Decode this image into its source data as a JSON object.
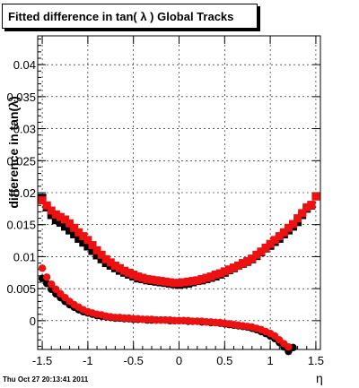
{
  "title": "Fitted difference in tan( λ )  Global Tracks",
  "datestamp": "Thu Oct 27 20:13:41 2011",
  "chart_data": {
    "type": "scatter",
    "xlabel": "η",
    "ylabel": "difference in tan(λ)",
    "xlim": [
      -1.55,
      1.55
    ],
    "ylim": [
      -0.0045,
      0.0445
    ],
    "x_ticks": [
      -1.5,
      -1,
      -0.5,
      0,
      0.5,
      1,
      1.5
    ],
    "x_tick_labels": [
      "-1.5",
      "-1",
      "-0.5",
      "0",
      "0.5",
      "1",
      "1.5"
    ],
    "y_ticks": [
      0,
      0.005,
      0.01,
      0.015,
      0.02,
      0.025,
      0.03,
      0.035,
      0.04
    ],
    "y_tick_labels": [
      "0",
      "0.005",
      "0.01",
      "0.015",
      "0.02",
      "0.025",
      "0.03",
      "0.035",
      "0.04"
    ],
    "grid": true,
    "series": [
      {
        "color": "#000000",
        "marker": "circle",
        "x": [
          -1.5,
          -1.45,
          -1.4,
          -1.35,
          -1.3,
          -1.25,
          -1.2,
          -1.15,
          -1.1,
          -1.05,
          -1.0,
          -0.95,
          -0.9,
          -0.85,
          -0.8,
          -0.75,
          -0.7,
          -0.65,
          -0.6,
          -0.55,
          -0.5,
          -0.45,
          -0.4,
          -0.35,
          -0.3,
          -0.25,
          -0.2,
          -0.15,
          -0.1,
          -0.05,
          0.0,
          0.05,
          0.1,
          0.15,
          0.2,
          0.25,
          0.3,
          0.35,
          0.4,
          0.45,
          0.5,
          0.55,
          0.6,
          0.65,
          0.7,
          0.75,
          0.8,
          0.85,
          0.9,
          0.95,
          1.0,
          1.05,
          1.1,
          1.15,
          1.2,
          1.25
        ],
        "y": [
          0.0066,
          0.0058,
          0.0049,
          0.0042,
          0.0036,
          0.003,
          0.0025,
          0.0021,
          0.0017,
          0.0014,
          0.0012,
          0.001,
          0.0008,
          0.0007,
          0.0006,
          0.0005,
          0.0004,
          0.0004,
          0.0003,
          0.0003,
          0.0002,
          0.0002,
          0.0002,
          0.0001,
          0.0001,
          0.0001,
          0.0001,
          0.0001,
          0.0,
          0.0,
          0.0,
          0.0,
          -0.0001,
          -0.0001,
          -0.0001,
          -0.0002,
          -0.0002,
          -0.0003,
          -0.0003,
          -0.0004,
          -0.0005,
          -0.0006,
          -0.0007,
          -0.0008,
          -0.0009,
          -0.001,
          -0.0012,
          -0.0014,
          -0.0017,
          -0.002,
          -0.0024,
          -0.0028,
          -0.0034,
          -0.0041,
          -0.0048,
          -0.0042
        ]
      },
      {
        "color": "#000000",
        "marker": "square",
        "x": [
          -1.5,
          -1.45,
          -1.4,
          -1.35,
          -1.3,
          -1.25,
          -1.2,
          -1.15,
          -1.1,
          -1.05,
          -1.0,
          -0.95,
          -0.9,
          -0.85,
          -0.8,
          -0.75,
          -0.7,
          -0.65,
          -0.6,
          -0.55,
          -0.5,
          -0.45,
          -0.4,
          -0.35,
          -0.3,
          -0.25,
          -0.2,
          -0.15,
          -0.1,
          -0.05,
          0.0,
          0.05,
          0.1,
          0.15,
          0.2,
          0.25,
          0.3,
          0.35,
          0.4,
          0.45,
          0.5,
          0.55,
          0.6,
          0.65,
          0.7,
          0.75,
          0.8,
          0.85,
          0.9,
          0.95,
          1.0,
          1.05,
          1.1,
          1.15,
          1.2,
          1.25,
          1.3,
          1.35,
          1.4,
          1.45
        ],
        "y": [
          0.0192,
          0.0177,
          0.0165,
          0.0157,
          0.0153,
          0.0147,
          0.0141,
          0.0135,
          0.0128,
          0.0122,
          0.0116,
          0.0109,
          0.0102,
          0.0096,
          0.009,
          0.0086,
          0.0082,
          0.0078,
          0.0075,
          0.0072,
          0.0069,
          0.0066,
          0.0065,
          0.0063,
          0.0062,
          0.0061,
          0.006,
          0.0059,
          0.0058,
          0.0057,
          0.0056,
          0.0057,
          0.0058,
          0.006,
          0.0062,
          0.0063,
          0.0065,
          0.0067,
          0.0069,
          0.0072,
          0.0075,
          0.0079,
          0.0082,
          0.0086,
          0.0089,
          0.0092,
          0.0096,
          0.0101,
          0.0107,
          0.0113,
          0.0117,
          0.0123,
          0.0128,
          0.0135,
          0.0141,
          0.0147,
          0.0154,
          0.0165,
          0.0175,
          0.018
        ]
      },
      {
        "color": "#ee1111",
        "marker": "circle",
        "x": [
          -1.5,
          -1.45,
          -1.4,
          -1.35,
          -1.3,
          -1.25,
          -1.2,
          -1.15,
          -1.1,
          -1.05,
          -1.0,
          -0.95,
          -0.9,
          -0.85,
          -0.8,
          -0.75,
          -0.7,
          -0.65,
          -0.6,
          -0.55,
          -0.5,
          -0.45,
          -0.4,
          -0.35,
          -0.3,
          -0.25,
          -0.2,
          -0.15,
          -0.1,
          -0.05,
          0.0,
          0.05,
          0.1,
          0.15,
          0.2,
          0.25,
          0.3,
          0.35,
          0.4,
          0.45,
          0.5,
          0.55,
          0.6,
          0.65,
          0.7,
          0.75,
          0.8,
          0.85,
          0.9,
          0.95,
          1.0,
          1.05,
          1.1,
          1.15,
          1.2
        ],
        "y": [
          0.0082,
          0.0068,
          0.0057,
          0.0049,
          0.0042,
          0.0036,
          0.003,
          0.0025,
          0.0021,
          0.0017,
          0.0014,
          0.0012,
          0.001,
          0.0009,
          0.0007,
          0.0006,
          0.0005,
          0.0005,
          0.0004,
          0.0004,
          0.0003,
          0.0003,
          0.0002,
          0.0002,
          0.0002,
          0.0001,
          0.0001,
          0.0001,
          0.0001,
          0.0,
          0.0,
          0.0,
          0.0,
          -0.0001,
          -0.0001,
          -0.0001,
          -0.0002,
          -0.0002,
          -0.0003,
          -0.0003,
          -0.0004,
          -0.0005,
          -0.0006,
          -0.0007,
          -0.0008,
          -0.0009,
          -0.001,
          -0.0012,
          -0.0014,
          -0.0017,
          -0.002,
          -0.0024,
          -0.003,
          -0.0036,
          -0.0041
        ]
      },
      {
        "color": "#ee1111",
        "marker": "square",
        "x": [
          -1.5,
          -1.45,
          -1.4,
          -1.35,
          -1.3,
          -1.25,
          -1.2,
          -1.15,
          -1.1,
          -1.05,
          -1.0,
          -0.95,
          -0.9,
          -0.85,
          -0.8,
          -0.75,
          -0.7,
          -0.65,
          -0.6,
          -0.55,
          -0.5,
          -0.45,
          -0.4,
          -0.35,
          -0.3,
          -0.25,
          -0.2,
          -0.15,
          -0.1,
          -0.05,
          0.0,
          0.05,
          0.1,
          0.15,
          0.2,
          0.25,
          0.3,
          0.35,
          0.4,
          0.45,
          0.5,
          0.55,
          0.6,
          0.65,
          0.7,
          0.75,
          0.8,
          0.85,
          0.9,
          0.95,
          1.0,
          1.05,
          1.1,
          1.15,
          1.2,
          1.25,
          1.3,
          1.35,
          1.4,
          1.45,
          1.5
        ],
        "y": [
          0.0188,
          0.018,
          0.0172,
          0.0166,
          0.0162,
          0.0158,
          0.0152,
          0.0145,
          0.0138,
          0.0132,
          0.0126,
          0.0118,
          0.011,
          0.0103,
          0.0096,
          0.0091,
          0.0086,
          0.0082,
          0.0078,
          0.0075,
          0.0072,
          0.0069,
          0.0067,
          0.0065,
          0.0064,
          0.0063,
          0.0062,
          0.0061,
          0.006,
          0.0059,
          0.0059,
          0.006,
          0.0061,
          0.0062,
          0.0063,
          0.0065,
          0.0067,
          0.0069,
          0.0072,
          0.0074,
          0.0077,
          0.008,
          0.0083,
          0.0086,
          0.009,
          0.0093,
          0.0097,
          0.0103,
          0.0108,
          0.0114,
          0.012,
          0.0126,
          0.0132,
          0.0138,
          0.0145,
          0.0151,
          0.016,
          0.0168,
          0.0177,
          0.0181,
          0.0194
        ]
      }
    ]
  }
}
